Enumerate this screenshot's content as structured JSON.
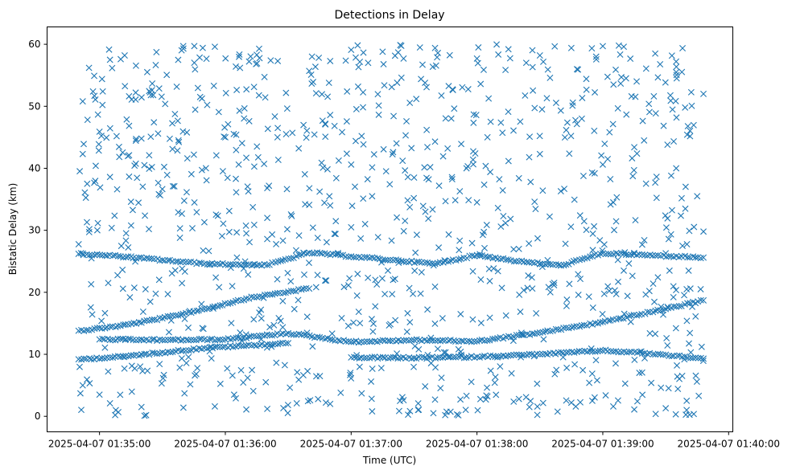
{
  "chart_data": {
    "type": "scatter",
    "title": "Detections in Delay",
    "xlabel": "Time (UTC)",
    "ylabel": "Bistatic Delay (km)",
    "marker": "x",
    "color": "#1f77b4",
    "grid": false,
    "xlim": [
      "2025-04-07 01:34:35",
      "2025-04-07 01:40:02"
    ],
    "ylim": [
      -2.5,
      62.8
    ],
    "x_ticks": [
      "2025-04-07 01:35:00",
      "2025-04-07 01:36:00",
      "2025-04-07 01:37:00",
      "2025-04-07 01:38:00",
      "2025-04-07 01:39:00",
      "2025-04-07 01:40:00"
    ],
    "y_ticks": [
      0,
      10,
      20,
      30,
      40,
      50,
      60
    ],
    "data_range": {
      "x_start": "2025-04-07 01:34:50",
      "x_end": "2025-04-07 01:39:48"
    },
    "series": [
      {
        "description": "track rising from ~13.8 km to ~20.5 km, then ~26 km band",
        "points": [
          [
            "2025-04-07 01:34:50",
            13.8
          ],
          [
            "2025-04-07 01:35:10",
            14.6
          ],
          [
            "2025-04-07 01:35:30",
            15.8
          ],
          [
            "2025-04-07 01:35:50",
            17.3
          ],
          [
            "2025-04-07 01:36:10",
            19.0
          ],
          [
            "2025-04-07 01:36:30",
            20.1
          ],
          [
            "2025-04-07 01:36:40",
            20.6
          ]
        ]
      },
      {
        "points": [
          [
            "2025-04-07 01:34:50",
            9.2
          ],
          [
            "2025-04-07 01:35:10",
            9.6
          ],
          [
            "2025-04-07 01:35:30",
            10.3
          ],
          [
            "2025-04-07 01:35:50",
            11.0
          ],
          [
            "2025-04-07 01:36:10",
            11.4
          ],
          [
            "2025-04-07 01:36:30",
            11.8
          ]
        ]
      },
      {
        "points": [
          [
            "2025-04-07 01:34:50",
            26.2
          ],
          [
            "2025-04-07 01:35:10",
            25.8
          ],
          [
            "2025-04-07 01:35:30",
            25.2
          ],
          [
            "2025-04-07 01:35:50",
            24.6
          ],
          [
            "2025-04-07 01:36:20",
            24.4
          ],
          [
            "2025-04-07 01:36:40",
            26.4
          ],
          [
            "2025-04-07 01:37:00",
            25.8
          ],
          [
            "2025-04-07 01:37:20",
            25.2
          ],
          [
            "2025-04-07 01:37:40",
            24.6
          ],
          [
            "2025-04-07 01:38:00",
            26.0
          ],
          [
            "2025-04-07 01:38:20",
            25.0
          ],
          [
            "2025-04-07 01:38:40",
            24.3
          ],
          [
            "2025-04-07 01:39:00",
            26.3
          ],
          [
            "2025-04-07 01:39:20",
            26.0
          ],
          [
            "2025-04-07 01:39:48",
            25.6
          ]
        ]
      },
      {
        "points": [
          [
            "2025-04-07 01:35:00",
            12.4
          ],
          [
            "2025-04-07 01:35:30",
            12.3
          ],
          [
            "2025-04-07 01:36:00",
            12.4
          ],
          [
            "2025-04-07 01:36:30",
            13.4
          ],
          [
            "2025-04-07 01:37:00",
            12.0
          ],
          [
            "2025-04-07 01:37:30",
            12.3
          ],
          [
            "2025-04-07 01:38:00",
            12.1
          ],
          [
            "2025-04-07 01:38:30",
            13.5
          ],
          [
            "2025-04-07 01:39:00",
            15.2
          ],
          [
            "2025-04-07 01:39:30",
            17.3
          ],
          [
            "2025-04-07 01:39:48",
            18.7
          ]
        ]
      },
      {
        "points": [
          [
            "2025-04-07 01:37:00",
            9.5
          ],
          [
            "2025-04-07 01:37:30",
            9.4
          ],
          [
            "2025-04-07 01:38:00",
            9.6
          ],
          [
            "2025-04-07 01:38:30",
            10.0
          ],
          [
            "2025-04-07 01:39:00",
            10.6
          ],
          [
            "2025-04-07 01:39:20",
            10.2
          ],
          [
            "2025-04-07 01:39:48",
            9.3
          ]
        ]
      },
      {
        "points": [
          [
            "2025-04-07 01:36:10",
            29.5
          ],
          [
            "2025-04-07 01:36:20",
            32.0
          ],
          [
            "2025-04-07 01:36:50",
            34.0
          ],
          [
            "2025-04-07 01:37:20",
            22.0
          ],
          [
            "2025-04-07 01:37:40",
            20.9
          ],
          [
            "2025-04-07 01:38:00",
            34.5
          ],
          [
            "2025-04-07 01:38:20",
            27.0
          ],
          [
            "2025-04-07 01:38:30",
            24.6
          ],
          [
            "2025-04-07 01:39:10",
            23.5
          ],
          [
            "2025-04-07 01:39:30",
            26.3
          ],
          [
            "2025-04-07 01:39:40",
            20.5
          ]
        ]
      },
      {
        "points": [
          [
            "2025-04-07 01:34:52",
            50.8
          ],
          [
            "2025-04-07 01:34:55",
            56.2
          ],
          [
            "2025-04-07 01:35:05",
            57.5
          ],
          [
            "2025-04-07 01:35:12",
            58.2
          ],
          [
            "2025-04-07 01:35:25",
            52.6
          ],
          [
            "2025-04-07 01:35:40",
            59.3
          ],
          [
            "2025-04-07 01:35:48",
            51.5
          ],
          [
            "2025-04-07 01:35:55",
            59.6
          ],
          [
            "2025-04-07 01:36:05",
            56.4
          ],
          [
            "2025-04-07 01:36:15",
            58.3
          ],
          [
            "2025-04-07 01:36:25",
            57.3
          ],
          [
            "2025-04-07 01:36:40",
            55.7
          ],
          [
            "2025-04-07 01:36:50",
            57.3
          ],
          [
            "2025-04-07 01:37:00",
            59.1
          ],
          [
            "2025-04-07 01:37:15",
            58.8
          ],
          [
            "2025-04-07 01:37:25",
            57.7
          ],
          [
            "2025-04-07 01:37:40",
            59.4
          ],
          [
            "2025-04-07 01:38:00",
            57.7
          ],
          [
            "2025-04-07 01:38:15",
            59.2
          ],
          [
            "2025-04-07 01:38:30",
            58.2
          ],
          [
            "2025-04-07 01:38:45",
            59.4
          ],
          [
            "2025-04-07 01:39:00",
            59.7
          ],
          [
            "2025-04-07 01:39:10",
            59.6
          ],
          [
            "2025-04-07 01:39:25",
            58.5
          ],
          [
            "2025-04-07 01:39:35",
            55.5
          ],
          [
            "2025-04-07 01:39:48",
            52.0
          ]
        ]
      },
      {
        "points": [
          [
            "2025-04-07 01:34:52",
            5.0
          ],
          [
            "2025-04-07 01:35:00",
            3.5
          ],
          [
            "2025-04-07 01:35:05",
            2.1
          ],
          [
            "2025-04-07 01:35:20",
            1.5
          ],
          [
            "2025-04-07 01:35:40",
            1.4
          ],
          [
            "2025-04-07 01:35:55",
            1.6
          ],
          [
            "2025-04-07 01:36:05",
            2.9
          ],
          [
            "2025-04-07 01:36:10",
            1.1
          ],
          [
            "2025-04-07 01:36:20",
            1.2
          ],
          [
            "2025-04-07 01:36:35",
            5.9
          ],
          [
            "2025-04-07 01:36:50",
            2.0
          ],
          [
            "2025-04-07 01:36:55",
            3.8
          ],
          [
            "2025-04-07 01:37:05",
            3.7
          ],
          [
            "2025-04-07 01:37:10",
            0.8
          ],
          [
            "2025-04-07 01:37:25",
            2.6
          ],
          [
            "2025-04-07 01:37:40",
            2.7
          ],
          [
            "2025-04-07 01:37:55",
            3.3
          ],
          [
            "2025-04-07 01:38:05",
            3.2
          ],
          [
            "2025-04-07 01:38:20",
            2.8
          ],
          [
            "2025-04-07 01:38:25",
            1.5
          ],
          [
            "2025-04-07 01:38:45",
            2.2
          ],
          [
            "2025-04-07 01:38:55",
            2.5
          ],
          [
            "2025-04-07 01:39:05",
            1.6
          ],
          [
            "2025-04-07 01:39:15",
            1.1
          ],
          [
            "2025-04-07 01:39:30",
            1.3
          ],
          [
            "2025-04-07 01:39:40",
            2.5
          ]
        ]
      },
      {
        "points": [
          [
            "2025-04-07 01:34:52",
            42.3
          ],
          [
            "2025-04-07 01:34:53",
            36.1
          ],
          [
            "2025-04-07 01:34:54",
            31.3
          ],
          [
            "2025-04-07 01:34:56",
            21.3
          ],
          [
            "2025-04-07 01:35:00",
            45.9
          ],
          [
            "2025-04-07 01:35:05",
            38.6
          ],
          [
            "2025-04-07 01:35:15",
            34.6
          ],
          [
            "2025-04-07 01:35:20",
            44.8
          ],
          [
            "2025-04-07 01:35:25",
            40.2
          ],
          [
            "2025-04-07 01:35:35",
            37.1
          ],
          [
            "2025-04-07 01:35:45",
            42.2
          ],
          [
            "2025-04-07 01:35:50",
            31.3
          ],
          [
            "2025-04-07 01:36:00",
            45.0
          ],
          [
            "2025-04-07 01:36:05",
            38.3
          ],
          [
            "2025-04-07 01:36:10",
            41.7
          ],
          [
            "2025-04-07 01:36:20",
            36.8
          ],
          [
            "2025-04-07 01:36:25",
            46.5
          ],
          [
            "2025-04-07 01:36:35",
            43.2
          ],
          [
            "2025-04-07 01:36:40",
            34.1
          ],
          [
            "2025-04-07 01:36:50",
            48.6
          ],
          [
            "2025-04-07 01:37:00",
            40.6
          ],
          [
            "2025-04-07 01:37:05",
            45.2
          ],
          [
            "2025-04-07 01:37:10",
            35.5
          ],
          [
            "2025-04-07 01:37:20",
            42.6
          ],
          [
            "2025-04-07 01:37:30",
            38.5
          ],
          [
            "2025-04-07 01:37:40",
            44.3
          ],
          [
            "2025-04-07 01:37:45",
            34.7
          ],
          [
            "2025-04-07 01:37:55",
            40.0
          ],
          [
            "2025-04-07 01:38:05",
            45.0
          ],
          [
            "2025-04-07 01:38:10",
            33.6
          ],
          [
            "2025-04-07 01:38:20",
            38.4
          ],
          [
            "2025-04-07 01:38:30",
            42.3
          ],
          [
            "2025-04-07 01:38:40",
            36.3
          ],
          [
            "2025-04-07 01:38:50",
            48.0
          ],
          [
            "2025-04-07 01:39:00",
            40.6
          ],
          [
            "2025-04-07 01:39:05",
            34.5
          ],
          [
            "2025-04-07 01:39:15",
            43.4
          ],
          [
            "2025-04-07 01:39:25",
            37.7
          ],
          [
            "2025-04-07 01:39:35",
            40.0
          ],
          [
            "2025-04-07 01:39:45",
            35.5
          ],
          [
            "2025-04-07 01:39:48",
            29.8
          ]
        ]
      }
    ]
  }
}
